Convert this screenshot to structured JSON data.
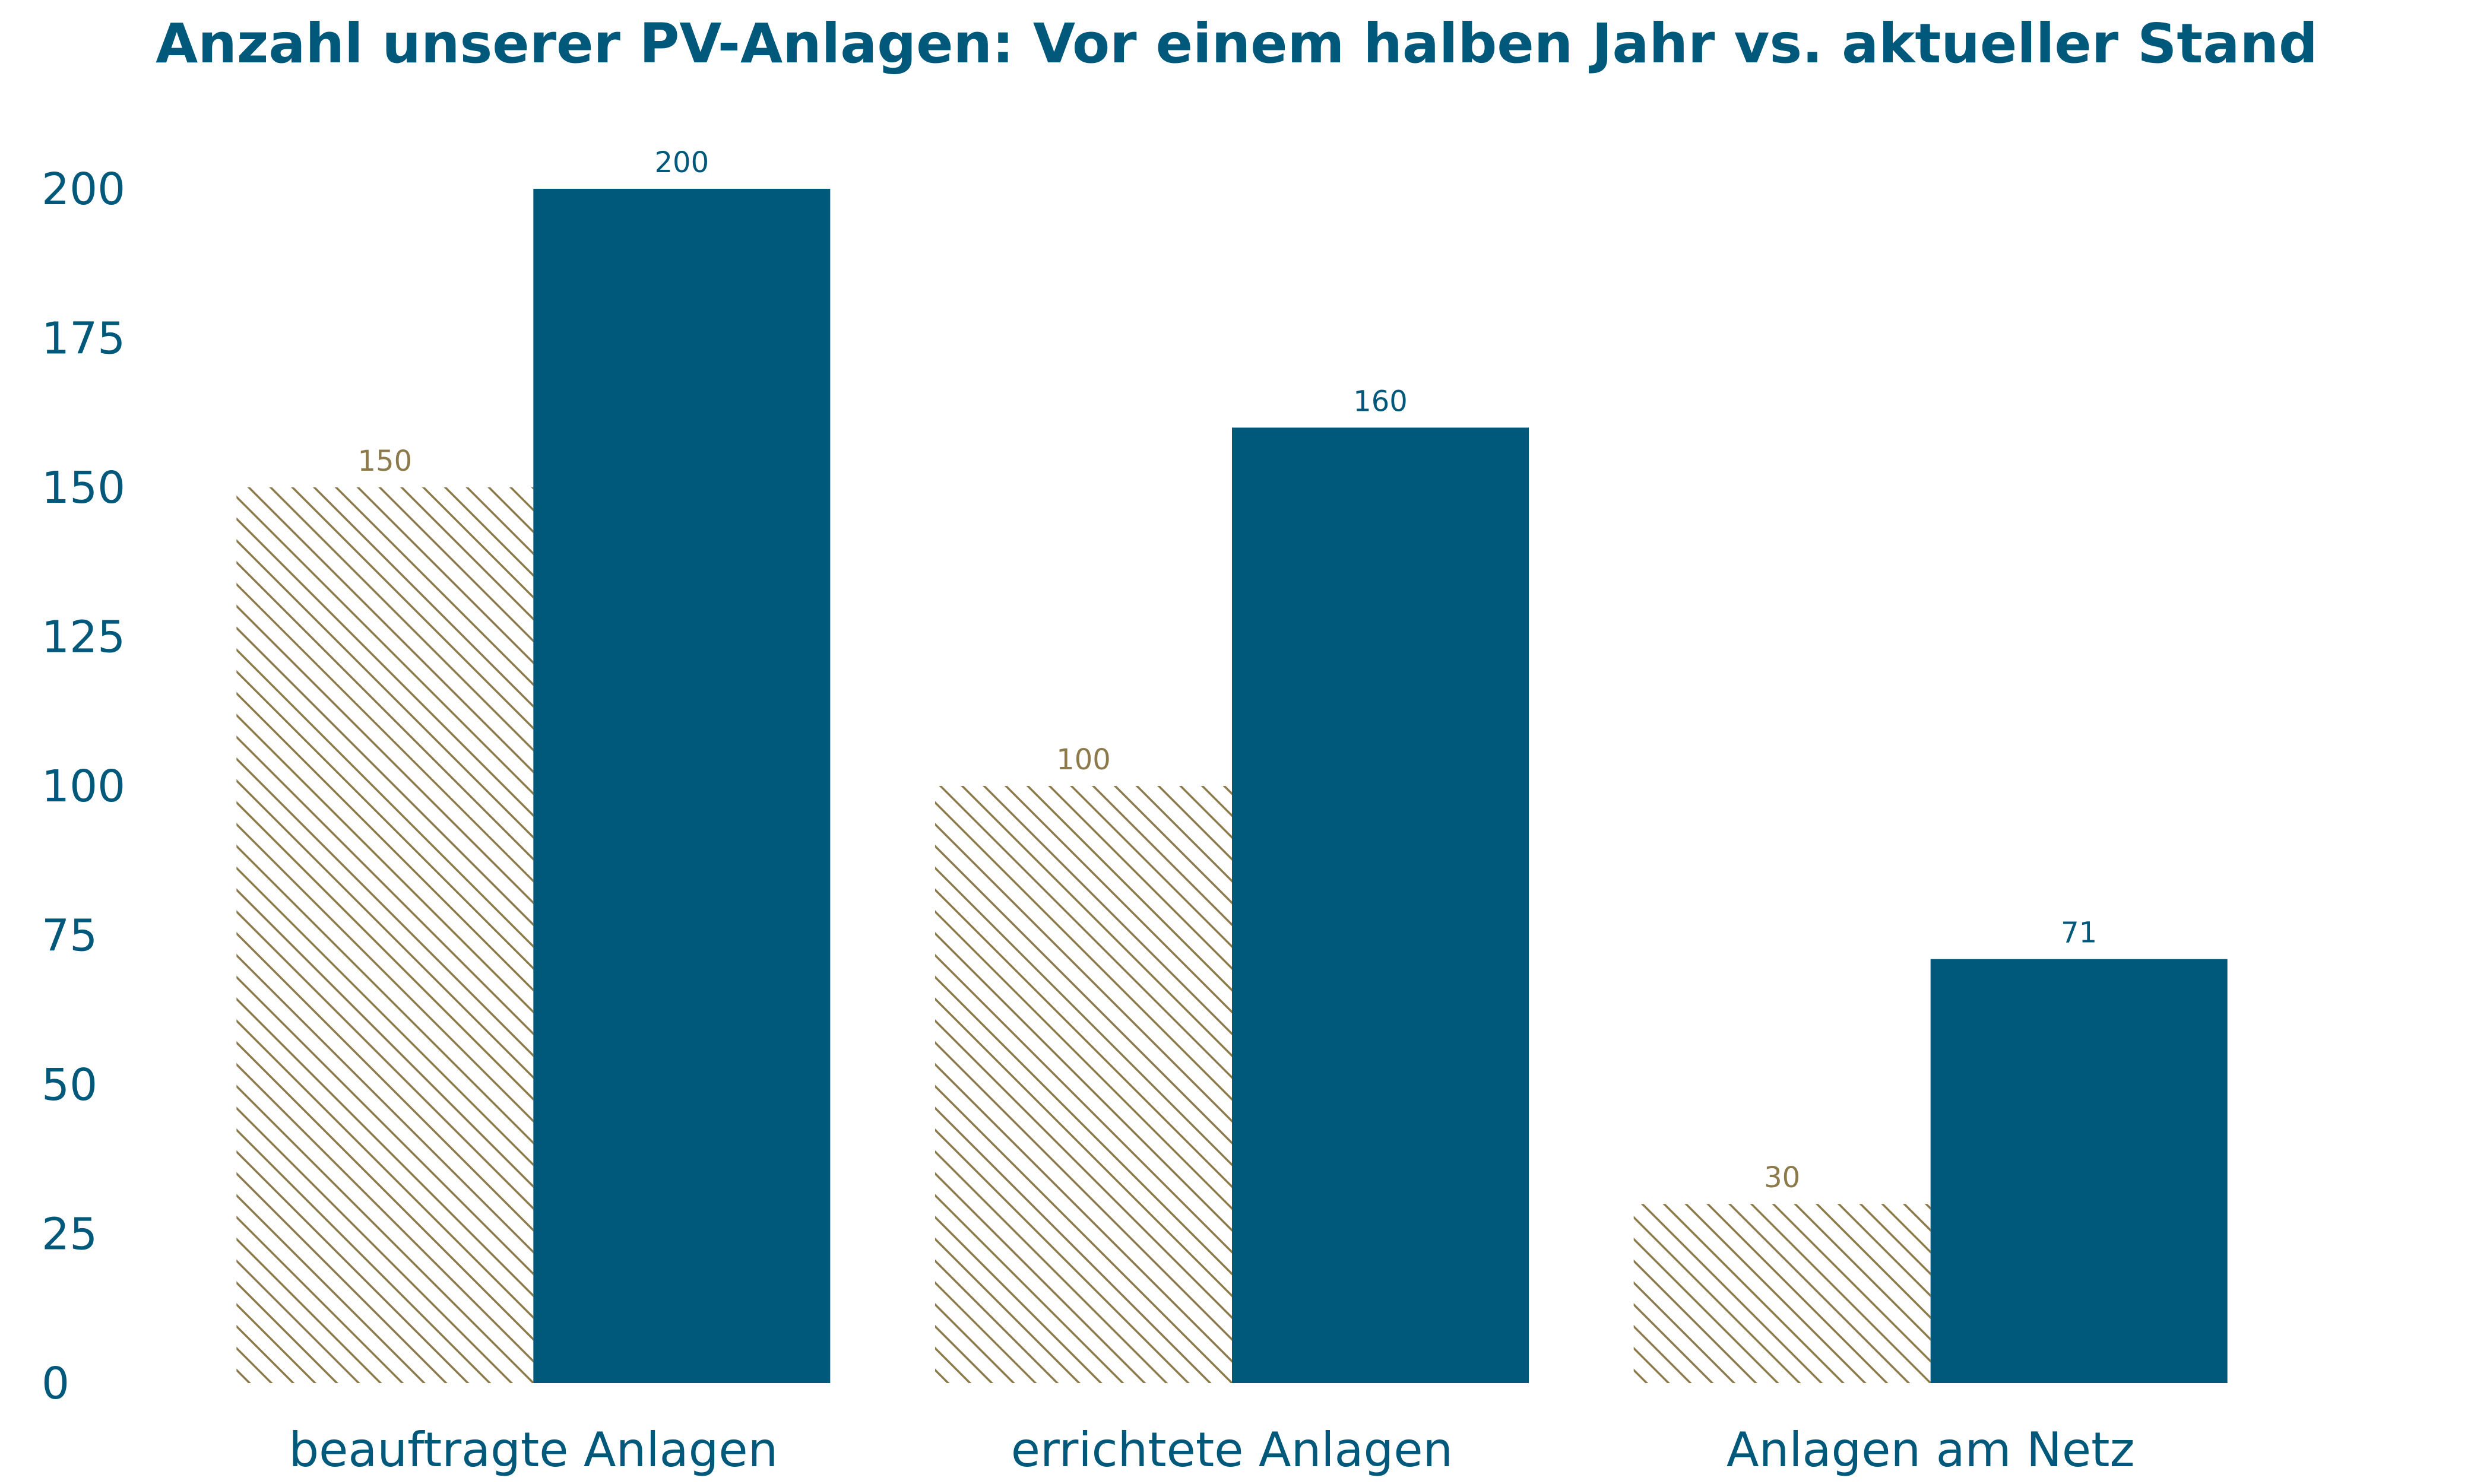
{
  "chart_data": {
    "type": "bar",
    "title": "Anzahl unserer PV-Anlagen: Vor einem halben Jahr vs. aktueller Stand",
    "xlabel": "",
    "ylabel": "",
    "categories": [
      "beauftragte Anlagen",
      "errichtete Anlagen",
      "Anlagen am Netz"
    ],
    "series": [
      {
        "values": [
          150,
          100,
          30
        ],
        "color": "#8c7a4a",
        "pattern": "diagonal-hatch",
        "data_labels": [
          "150",
          "100",
          "30"
        ]
      },
      {
        "values": [
          200,
          160,
          71
        ],
        "color": "#00587b",
        "pattern": "solid",
        "data_labels": [
          "200",
          "160",
          "71"
        ]
      }
    ],
    "ylim": [
      0,
      200
    ],
    "yticks": [
      0,
      25,
      50,
      75,
      100,
      125,
      150,
      175,
      200
    ],
    "ytick_labels": [
      "0",
      "25",
      "50",
      "75",
      "100",
      "125",
      "150",
      "175",
      "200"
    ],
    "grid": false,
    "legend": "none"
  },
  "colors": {
    "text": "#00587b",
    "hatch": "#8c7a4a",
    "solid": "#00587b"
  }
}
